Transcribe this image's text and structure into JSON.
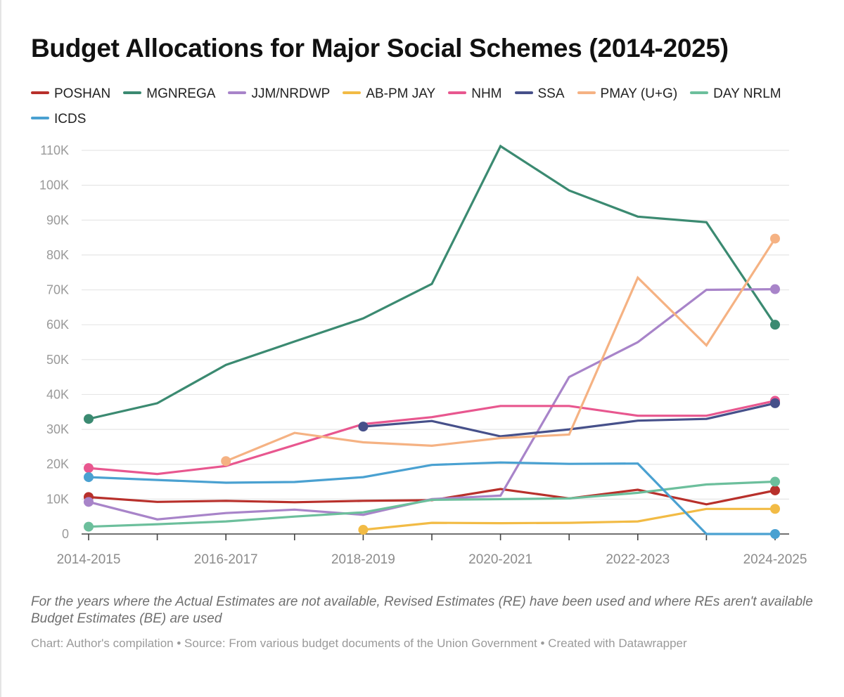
{
  "title": "Budget Allocations for Major Social Schemes (2014-2025)",
  "notes": "For the years where the Actual Estimates are not available, Revised Estimates (RE) have been used and where REs aren't available Budget Estimates (BE) are used",
  "source": "Chart: Author's compilation • Source: From various budget documents of the Union Government • Created with Datawrapper",
  "chart_data": {
    "type": "line",
    "title": "Budget Allocations for Major Social Schemes (2014-2025)",
    "xlabel": "",
    "ylabel": "",
    "ylim": [
      0,
      110000
    ],
    "grid": true,
    "legend_position": "top",
    "y_ticks": [
      0,
      10000,
      20000,
      30000,
      40000,
      50000,
      60000,
      70000,
      80000,
      90000,
      100000,
      110000
    ],
    "y_tick_labels": [
      "0",
      "10K",
      "20K",
      "30K",
      "40K",
      "50K",
      "60K",
      "70K",
      "80K",
      "90K",
      "100K",
      "110K"
    ],
    "x": [
      "2014-2015",
      "2015-2016",
      "2016-2017",
      "2017-2018",
      "2018-2019",
      "2019-2020",
      "2020-2021",
      "2021-2022",
      "2022-2023",
      "2023-2024",
      "2024-2025"
    ],
    "x_tick_labels": [
      "2014-2015",
      "",
      "2016-2017",
      "",
      "2018-2019",
      "",
      "2020-2021",
      "",
      "2022-2023",
      "",
      "2024-2025"
    ],
    "series": [
      {
        "name": "POSHAN",
        "color": "#b8302b",
        "values": [
          10600,
          9200,
          9500,
          9100,
          9500,
          9700,
          12900,
          10200,
          12700,
          8500,
          12500
        ]
      },
      {
        "name": "MGNREGA",
        "color": "#3b8a71",
        "values": [
          33000,
          37500,
          48500,
          55200,
          61800,
          71700,
          111200,
          98500,
          91000,
          89400,
          60000
        ]
      },
      {
        "name": "JJM/NRDWP",
        "color": "#a884c9",
        "values": [
          9200,
          4200,
          6000,
          7000,
          5500,
          10000,
          11000,
          45000,
          55000,
          70000,
          70200
        ]
      },
      {
        "name": "AB-PM JAY",
        "color": "#f2bb45",
        "values": [
          null,
          null,
          null,
          null,
          1200,
          3200,
          3100,
          3200,
          3600,
          7200,
          7200
        ]
      },
      {
        "name": "NHM",
        "color": "#e8578f",
        "values": [
          18900,
          17200,
          19500,
          25500,
          31500,
          33500,
          36700,
          36700,
          33900,
          33900,
          38200
        ]
      },
      {
        "name": "SSA",
        "color": "#46508a",
        "values": [
          null,
          null,
          null,
          null,
          30800,
          32400,
          28000,
          30000,
          32500,
          33000,
          37500
        ]
      },
      {
        "name": "PMAY (U+G)",
        "color": "#f5b283",
        "values": [
          null,
          null,
          20900,
          29000,
          26300,
          25300,
          27500,
          28500,
          73500,
          54100,
          84700
        ]
      },
      {
        "name": "DAY NRLM",
        "color": "#6cbf9c",
        "values": [
          2100,
          2800,
          3600,
          5000,
          6200,
          9800,
          10000,
          10200,
          11800,
          14200,
          15000
        ]
      },
      {
        "name": "ICDS",
        "color": "#4aa1d1",
        "values": [
          16300,
          15500,
          14700,
          14900,
          16300,
          19800,
          20500,
          20100,
          20200,
          0,
          0
        ]
      }
    ]
  }
}
